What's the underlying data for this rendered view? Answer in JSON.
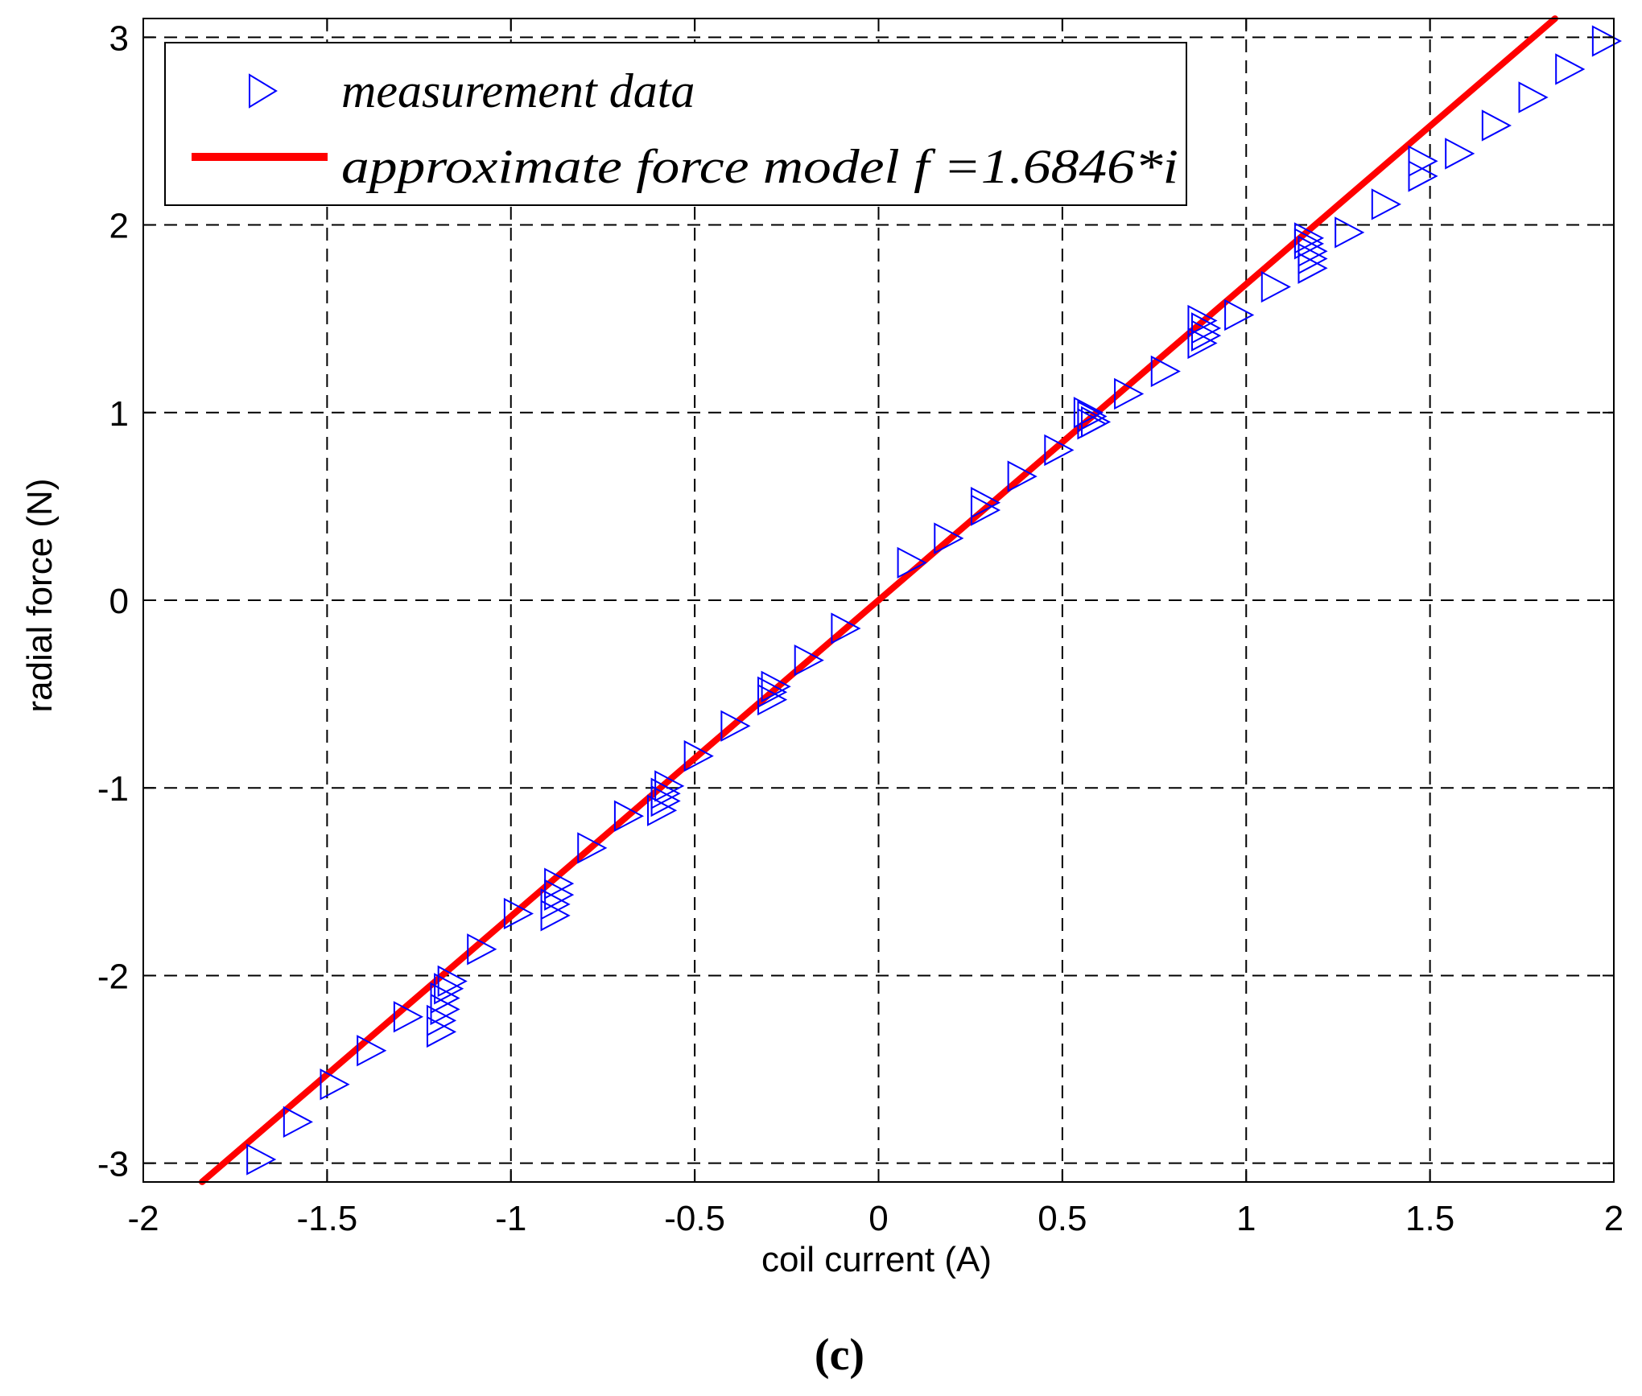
{
  "chart_data": {
    "type": "scatter",
    "panel_label": "(c)",
    "xlabel": "coil current (A)",
    "ylabel": "radial force (N)",
    "xlim": [
      -2,
      2
    ],
    "ylim": [
      -3.1,
      3.1
    ],
    "x_ticks": [
      -2,
      -1.5,
      -1,
      -0.5,
      0,
      0.5,
      1,
      1.5,
      2
    ],
    "x_tick_labels": [
      "-2",
      "-1.5",
      "-1",
      "-0.5",
      "0",
      "0.5",
      "1",
      "1.5",
      "2"
    ],
    "y_ticks": [
      -3,
      -2,
      -1,
      0,
      1,
      2,
      3
    ],
    "y_tick_labels": [
      "-3",
      "-2",
      "-1",
      "0",
      "1",
      "2",
      "3"
    ],
    "grid": true,
    "legend_position": "top-left",
    "legend": [
      {
        "label": "measurement data",
        "marker": "triangle-right",
        "color": "#0000ff"
      },
      {
        "label": "approximate force model f =1.6846*i",
        "line": "solid",
        "color": "#ff0000"
      }
    ],
    "series": [
      {
        "name": "measurement data",
        "kind": "scatter",
        "marker": "triangle-right",
        "color": "#0000ff",
        "points": [
          [
            -1.68,
            -2.98
          ],
          [
            -1.58,
            -2.78
          ],
          [
            -1.48,
            -2.58
          ],
          [
            -1.38,
            -2.4
          ],
          [
            -1.28,
            -2.22
          ],
          [
            -1.19,
            -2.3
          ],
          [
            -1.19,
            -2.24
          ],
          [
            -1.18,
            -2.18
          ],
          [
            -1.18,
            -2.12
          ],
          [
            -1.17,
            -2.07
          ],
          [
            -1.16,
            -2.03
          ],
          [
            -1.08,
            -1.86
          ],
          [
            -0.98,
            -1.67
          ],
          [
            -0.88,
            -1.68
          ],
          [
            -0.88,
            -1.62
          ],
          [
            -0.87,
            -1.57
          ],
          [
            -0.87,
            -1.51
          ],
          [
            -0.78,
            -1.32
          ],
          [
            -0.68,
            -1.15
          ],
          [
            -0.59,
            -1.12
          ],
          [
            -0.58,
            -1.07
          ],
          [
            -0.58,
            -1.03
          ],
          [
            -0.57,
            -0.99
          ],
          [
            -0.49,
            -0.83
          ],
          [
            -0.39,
            -0.67
          ],
          [
            -0.29,
            -0.53
          ],
          [
            -0.29,
            -0.49
          ],
          [
            -0.28,
            -0.46
          ],
          [
            -0.19,
            -0.32
          ],
          [
            -0.09,
            -0.15
          ],
          [
            0.09,
            0.2
          ],
          [
            0.19,
            0.33
          ],
          [
            0.29,
            0.48
          ],
          [
            0.29,
            0.52
          ],
          [
            0.39,
            0.66
          ],
          [
            0.49,
            0.8
          ],
          [
            0.58,
            0.94
          ],
          [
            0.58,
            0.98
          ],
          [
            0.57,
            1.0
          ],
          [
            0.59,
            0.95
          ],
          [
            0.68,
            1.1
          ],
          [
            0.78,
            1.22
          ],
          [
            0.88,
            1.37
          ],
          [
            0.89,
            1.41
          ],
          [
            0.89,
            1.45
          ],
          [
            0.88,
            1.49
          ],
          [
            0.98,
            1.52
          ],
          [
            1.08,
            1.67
          ],
          [
            1.18,
            1.77
          ],
          [
            1.18,
            1.82
          ],
          [
            1.18,
            1.86
          ],
          [
            1.17,
            1.9
          ],
          [
            1.17,
            1.93
          ],
          [
            1.28,
            1.96
          ],
          [
            1.38,
            2.11
          ],
          [
            1.48,
            2.26
          ],
          [
            1.48,
            2.34
          ],
          [
            1.58,
            2.38
          ],
          [
            1.68,
            2.53
          ],
          [
            1.78,
            2.68
          ],
          [
            1.88,
            2.83
          ],
          [
            1.98,
            2.98
          ]
        ]
      },
      {
        "name": "approximate force model f =1.6846*i",
        "kind": "line",
        "color": "#ff0000",
        "slope": 1.6846,
        "x_range": [
          -1.84,
          1.84
        ]
      }
    ]
  }
}
